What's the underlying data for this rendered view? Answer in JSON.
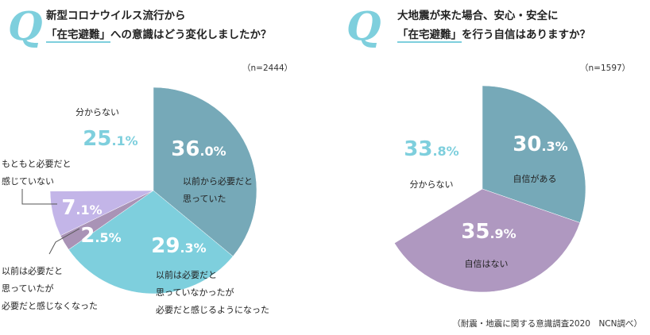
{
  "chart_data": [
    {
      "type": "pie",
      "question_mark": "Q",
      "title_line1": "新型コロナウイルス流行から",
      "title_line2_highlight": "「在宅避難」",
      "title_line2_rest": "への意識はどう変化しましたか？",
      "sample_size": "（n=2444）",
      "slices": [
        {
          "label_lines": [
            "以前から必要だと",
            "思っていた"
          ],
          "value": 36.0,
          "int": "36",
          "dec": ".0%",
          "color": "#76a9b8"
        },
        {
          "label_lines": [
            "以前は必要だと",
            "思っていなかったが",
            "必要だと感じるようになった"
          ],
          "value": 29.3,
          "int": "29",
          "dec": ".3%",
          "color": "#7ecfdd"
        },
        {
          "label_lines": [
            "以前は必要だと",
            "思っていたが",
            "必要だと感じなくなった"
          ],
          "value": 2.5,
          "int": "2",
          "dec": ".5%",
          "color": "#a993b6"
        },
        {
          "label_lines": [
            "もともと必要だと",
            "感じていない"
          ],
          "value": 7.1,
          "int": "7",
          "dec": ".1%",
          "color": "#c3b5e8"
        },
        {
          "label_lines": [
            "分からない"
          ],
          "value": 25.1,
          "int": "25",
          "dec": ".1%",
          "color": "#ffffff"
        }
      ]
    },
    {
      "type": "pie",
      "question_mark": "Q",
      "title_line1": "大地震が来た場合、安心・安全に",
      "title_line2_highlight": "「在宅避難」",
      "title_line2_rest": "を行う自信はありますか？",
      "sample_size": "（n=1597）",
      "slices": [
        {
          "label_lines": [
            "自信がある"
          ],
          "value": 30.3,
          "int": "30",
          "dec": ".3%",
          "color": "#76a9b8"
        },
        {
          "label_lines": [
            "自信はない"
          ],
          "value": 35.9,
          "int": "35",
          "dec": ".9%",
          "color": "#af98c0"
        },
        {
          "label_lines": [
            "分からない"
          ],
          "value": 33.8,
          "int": "33",
          "dec": ".8%",
          "color": "#ffffff"
        }
      ]
    }
  ],
  "source": "（耐震・地震に関する意識調査2020　NCN調べ）"
}
